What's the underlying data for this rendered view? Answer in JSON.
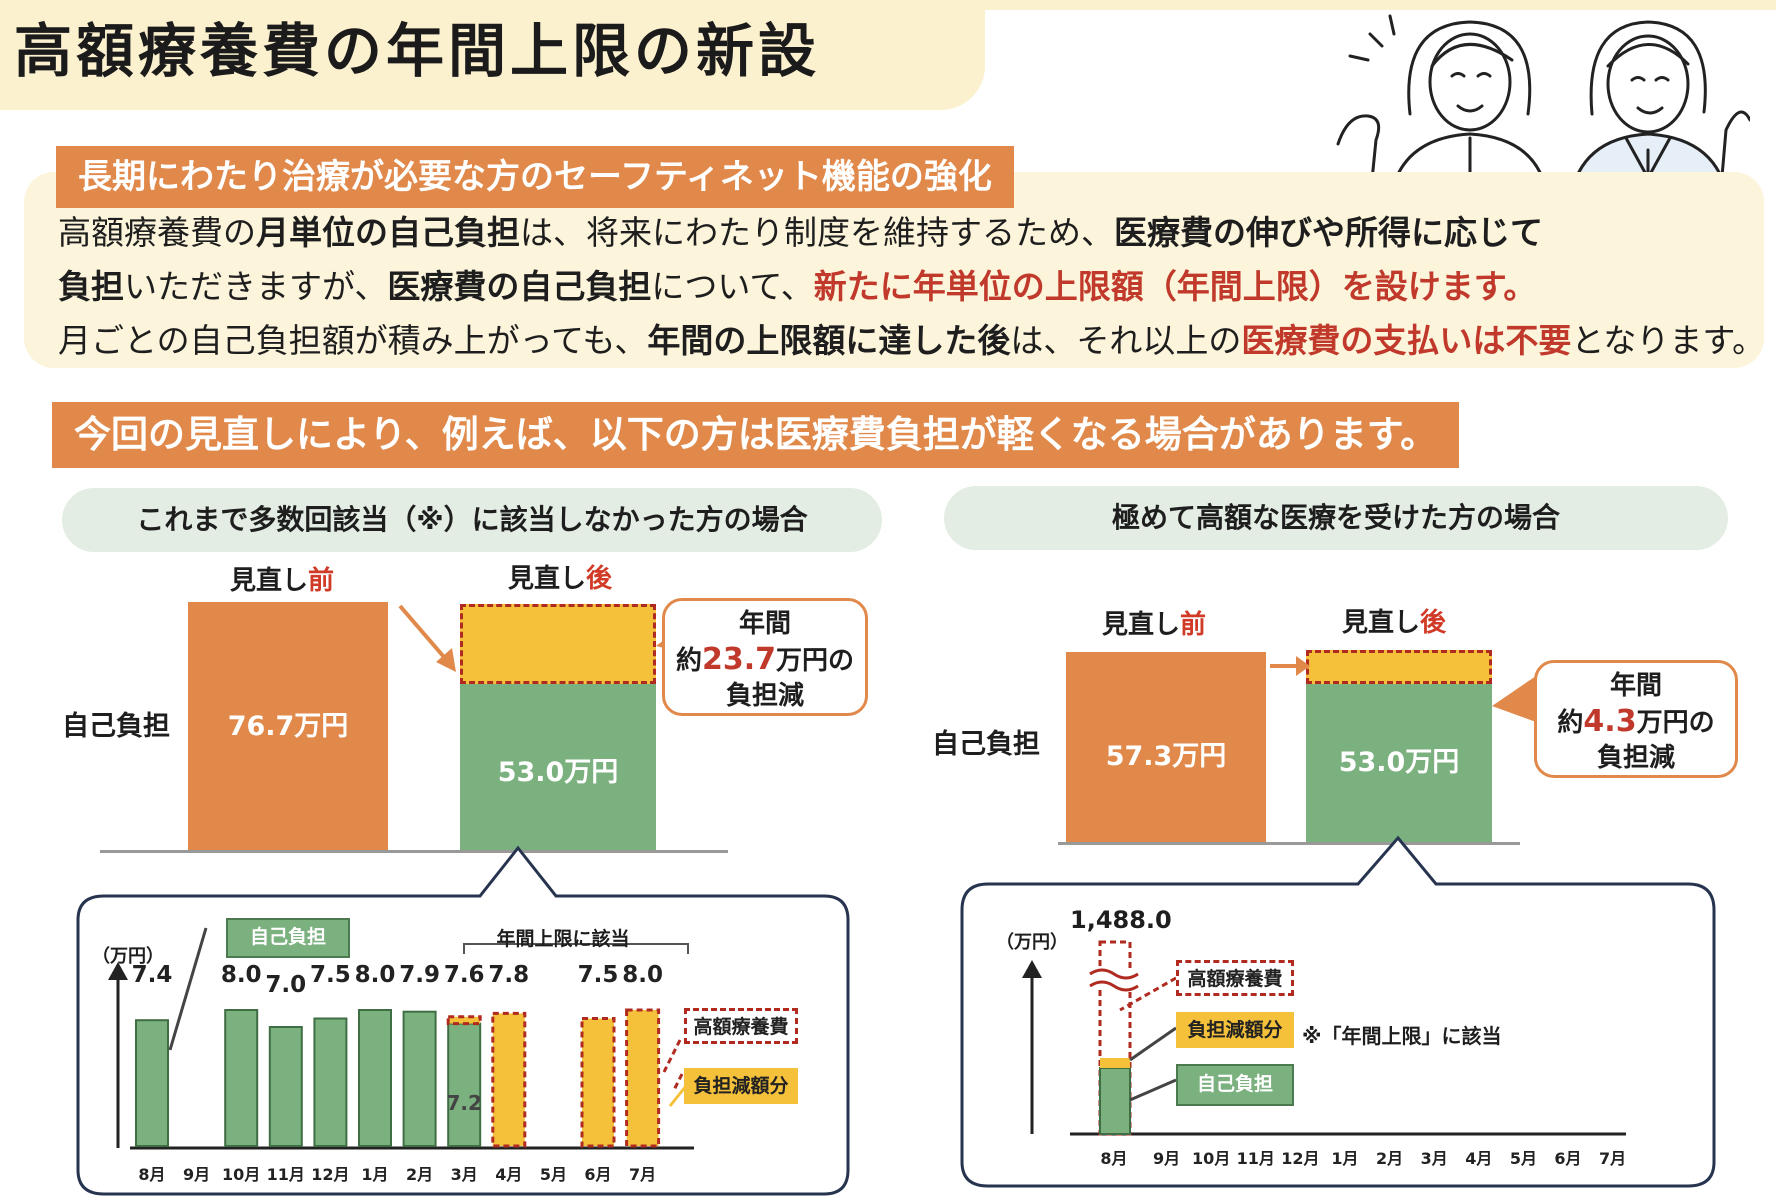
{
  "title": "高額療養費の年間上限の新設",
  "section1": {
    "banner": "長期にわたり治療が必要な方のセーフティネット機能の強化",
    "line1": [
      {
        "t": "高額療養費の",
        "s": "n"
      },
      {
        "t": "月単位の自己負担",
        "s": "k"
      },
      {
        "t": "は、将来にわたり制度を維持するため、",
        "s": "n"
      },
      {
        "t": "医療費の伸びや所得に応じて",
        "s": "k"
      }
    ],
    "line2": [
      {
        "t": "負担",
        "s": "k"
      },
      {
        "t": "いただきますが、",
        "s": "n"
      },
      {
        "t": "医療費の自己負担",
        "s": "k"
      },
      {
        "t": "について、",
        "s": "n"
      },
      {
        "t": "新たに年単位の上限額（年間上限）を設けます。",
        "s": "r"
      }
    ],
    "line3": [
      {
        "t": "月ごとの自己負担額が積み上がっても、",
        "s": "n"
      },
      {
        "t": "年間の上限額に達した後",
        "s": "k"
      },
      {
        "t": "は、それ以上の",
        "s": "n"
      },
      {
        "t": "医療費の支払いは不要",
        "s": "r"
      },
      {
        "t": "となります。",
        "s": "n"
      }
    ]
  },
  "section2": {
    "banner": "今回の見直しにより、例えば、以下の方は医療費負担が軽くなる場合があります。"
  },
  "left_case": {
    "pill": "これまで多数回該当（※）に該当しなかった方の場合",
    "before_prefix": "見直し",
    "before_suffix": "前",
    "after_prefix": "見直し",
    "after_suffix": "後",
    "side_label": "自己負担",
    "before_value": "76.7万円",
    "after_value": "53.0万円",
    "callout_line1": "年間",
    "callout_prefix": "約",
    "callout_num": "23.7",
    "callout_suffix": "万円の",
    "callout_line3": "負担減"
  },
  "right_case": {
    "pill": "極めて高額な医療を受けた方の場合",
    "before_prefix": "見直し",
    "before_suffix": "前",
    "after_prefix": "見直し",
    "after_suffix": "後",
    "side_label": "自己負担",
    "before_value": "57.3万円",
    "after_value": "53.0万円",
    "callout_line1": "年間",
    "callout_prefix": "約",
    "callout_num": "4.3",
    "callout_suffix": "万円の",
    "callout_line3": "負担減"
  },
  "left_detail": {
    "unit": "（万円）",
    "tag_self": "自己負担",
    "tag_annual": "年間上限に該当",
    "tag_kougaku": "高額療養費",
    "tag_reduce": "負担減額分",
    "inner_value": "7.2",
    "months": [
      "8月",
      "9月",
      "10月",
      "11月",
      "12月",
      "1月",
      "2月",
      "3月",
      "4月",
      "5月",
      "6月",
      "7月"
    ],
    "values": [
      "7.4",
      "",
      "8.0",
      "7.0",
      "7.5",
      "8.0",
      "7.9",
      "7.6",
      "7.8",
      "",
      "7.5",
      "8.0"
    ]
  },
  "right_detail": {
    "unit": "（万円）",
    "top_value": "1,488.0",
    "tag_kougaku": "高額療養費",
    "tag_reduce": "負担減額分",
    "tag_self": "自己負担",
    "note": "※「年間上限」に該当",
    "months": [
      "8月",
      "9月",
      "10月",
      "11月",
      "12月",
      "1月",
      "2月",
      "3月",
      "4月",
      "5月",
      "6月",
      "7月"
    ]
  },
  "chart_data": [
    {
      "type": "bar",
      "title": "",
      "categories": [
        "見直し前",
        "見直し後"
      ],
      "series": [
        {
          "name": "自己負担",
          "values": [
            76.7,
            53.0
          ]
        }
      ],
      "annotations": [
        "年間約23.7万円の負担減"
      ]
    },
    {
      "type": "bar",
      "title": "",
      "categories": [
        "見直し前",
        "見直し後"
      ],
      "series": [
        {
          "name": "自己負担",
          "values": [
            57.3,
            53.0
          ]
        }
      ],
      "annotations": [
        "年間約4.3万円の負担減"
      ]
    },
    {
      "type": "bar",
      "title": "",
      "categories": [
        "8月",
        "9月",
        "10月",
        "11月",
        "12月",
        "1月",
        "2月",
        "3月",
        "4月",
        "5月",
        "6月",
        "7月"
      ],
      "series": [
        {
          "name": "自己負担",
          "values": [
            7.4,
            null,
            8.0,
            7.0,
            7.5,
            8.0,
            7.9,
            7.2,
            null,
            null,
            null,
            null
          ]
        },
        {
          "name": "負担減額分",
          "values": [
            null,
            null,
            null,
            null,
            null,
            null,
            null,
            0.4,
            7.8,
            null,
            7.5,
            8.0
          ]
        }
      ],
      "ylabel": "（万円）"
    },
    {
      "type": "bar",
      "title": "",
      "categories": [
        "8月",
        "9月",
        "10月",
        "11月",
        "12月",
        "1月",
        "2月",
        "3月",
        "4月",
        "5月",
        "6月",
        "7月"
      ],
      "series": [
        {
          "name": "高額療養費",
          "values": [
            1488.0,
            null,
            null,
            null,
            null,
            null,
            null,
            null,
            null,
            null,
            null,
            null
          ]
        }
      ],
      "ylabel": "（万円）"
    }
  ]
}
